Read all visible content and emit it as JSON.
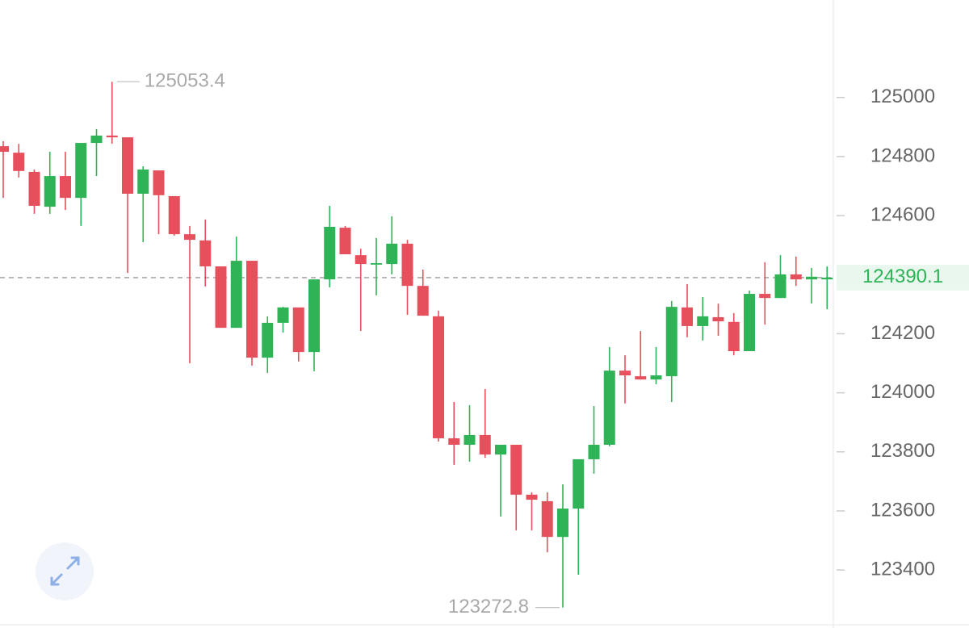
{
  "chart_data": {
    "type": "candlestick",
    "up_color": "#2eb456",
    "down_color": "#e5505c",
    "ylim": [
      123220,
      125330
    ],
    "yticks": [
      123400,
      123600,
      123800,
      124000,
      124200,
      124400,
      124600,
      124800,
      125000
    ],
    "open": [
      124835,
      124813,
      124748,
      124630,
      124734,
      124660,
      124846,
      124871,
      124865,
      124674,
      124753,
      124666,
      124537,
      124516,
      124428,
      124220,
      124447,
      124119,
      124237,
      124289,
      124138,
      124384,
      124559,
      124466,
      124434,
      124436,
      124505,
      124362,
      124259,
      123846,
      123824,
      123857,
      123791,
      123824,
      123655,
      123633,
      123512,
      123608,
      123775,
      123824,
      124075,
      124056,
      124045,
      124056,
      124289,
      124226,
      124256,
      124240,
      124141,
      124335,
      124321,
      124401,
      124384,
      124384
    ],
    "high": [
      124852,
      124843,
      124756,
      124816,
      124816,
      124846,
      124893,
      125053.4,
      124865,
      124767,
      124753,
      124666,
      124565,
      124587,
      124428,
      124529,
      124447,
      124259,
      124291,
      124289,
      124384,
      124633,
      124565,
      124488,
      124524,
      124598,
      124518,
      124417,
      124278,
      123969,
      123958,
      124013,
      123824,
      123824,
      123663,
      123663,
      123690,
      123775,
      123955,
      124155,
      124127,
      124209,
      124155,
      124311,
      124368,
      124324,
      124302,
      124270,
      124346,
      124442,
      124466,
      124461,
      124423,
      124428
    ],
    "low": [
      124660,
      124729,
      124606,
      124606,
      124619,
      124565,
      124734,
      124843,
      124406,
      124510,
      124537,
      124532,
      124100,
      124360,
      124220,
      124220,
      124092,
      124067,
      124204,
      124106,
      124073,
      124357,
      124469,
      124209,
      124330,
      124401,
      124264,
      124261,
      123835,
      123756,
      123767,
      123780,
      123581,
      123534,
      123534,
      123460,
      123272.8,
      123384,
      123726,
      123819,
      123964,
      124045,
      124029,
      123969,
      124188,
      124177,
      124193,
      124127,
      124141,
      124231,
      124321,
      124362,
      124302,
      124283
    ],
    "close": [
      124816,
      124751,
      124633,
      124734,
      124660,
      124846,
      124871,
      124865,
      124674,
      124756,
      124669,
      124537,
      124518,
      124428,
      124220,
      124447,
      124119,
      124237,
      124289,
      124138,
      124384,
      124562,
      124469,
      124436,
      124439,
      124505,
      124362,
      124261,
      123846,
      123824,
      123857,
      123791,
      123824,
      123655,
      123638,
      123512,
      123608,
      123775,
      123824,
      124075,
      124059,
      124045,
      124059,
      124291,
      124226,
      124259,
      124242,
      124141,
      124335,
      124321,
      124401,
      124384,
      124393,
      124390.1
    ]
  }
}
